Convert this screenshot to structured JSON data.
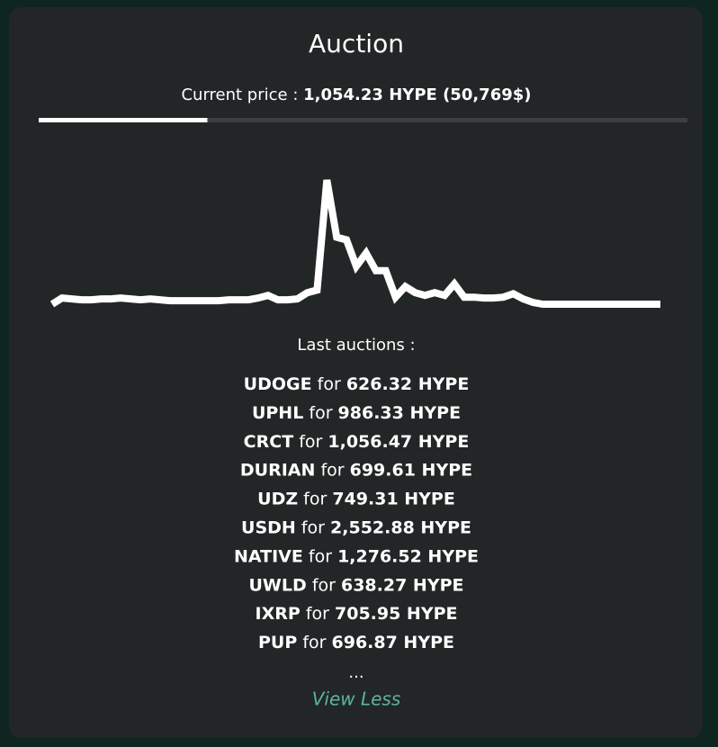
{
  "header": {
    "title": "Auction"
  },
  "price": {
    "label": "Current price :",
    "value": "1,054.23 HYPE (50,769$)"
  },
  "progress": 0.26,
  "chart_data": {
    "type": "line",
    "color": "#ffffff",
    "values": [
      650,
      745,
      731,
      718,
      718,
      731,
      731,
      745,
      731,
      718,
      731,
      718,
      704,
      704,
      704,
      704,
      704,
      704,
      718,
      718,
      718,
      745,
      785,
      718,
      718,
      731,
      826,
      866,
      2554,
      1676,
      1636,
      1231,
      1433,
      1163,
      1163,
      758,
      920,
      826,
      785,
      826,
      785,
      960,
      758,
      758,
      745,
      745,
      758,
      812,
      731,
      677,
      650,
      650,
      650,
      650,
      650,
      650,
      650,
      650,
      650,
      650,
      650,
      650,
      650
    ]
  },
  "auctions": {
    "heading": "Last auctions :",
    "joiner": "for",
    "items": [
      {
        "ticker": "UDOGE",
        "amount": "626.32 HYPE"
      },
      {
        "ticker": "UPHL",
        "amount": "986.33 HYPE"
      },
      {
        "ticker": "CRCT",
        "amount": "1,056.47 HYPE"
      },
      {
        "ticker": "DURIAN",
        "amount": "699.61 HYPE"
      },
      {
        "ticker": "UDZ",
        "amount": "749.31 HYPE"
      },
      {
        "ticker": "USDH",
        "amount": "2,552.88 HYPE"
      },
      {
        "ticker": "NATIVE",
        "amount": "1,276.52 HYPE"
      },
      {
        "ticker": "UWLD",
        "amount": "638.27 HYPE"
      },
      {
        "ticker": "IXRP",
        "amount": "705.95 HYPE"
      },
      {
        "ticker": "PUP",
        "amount": "696.87 HYPE"
      }
    ],
    "more": "...",
    "toggle": "View Less"
  }
}
